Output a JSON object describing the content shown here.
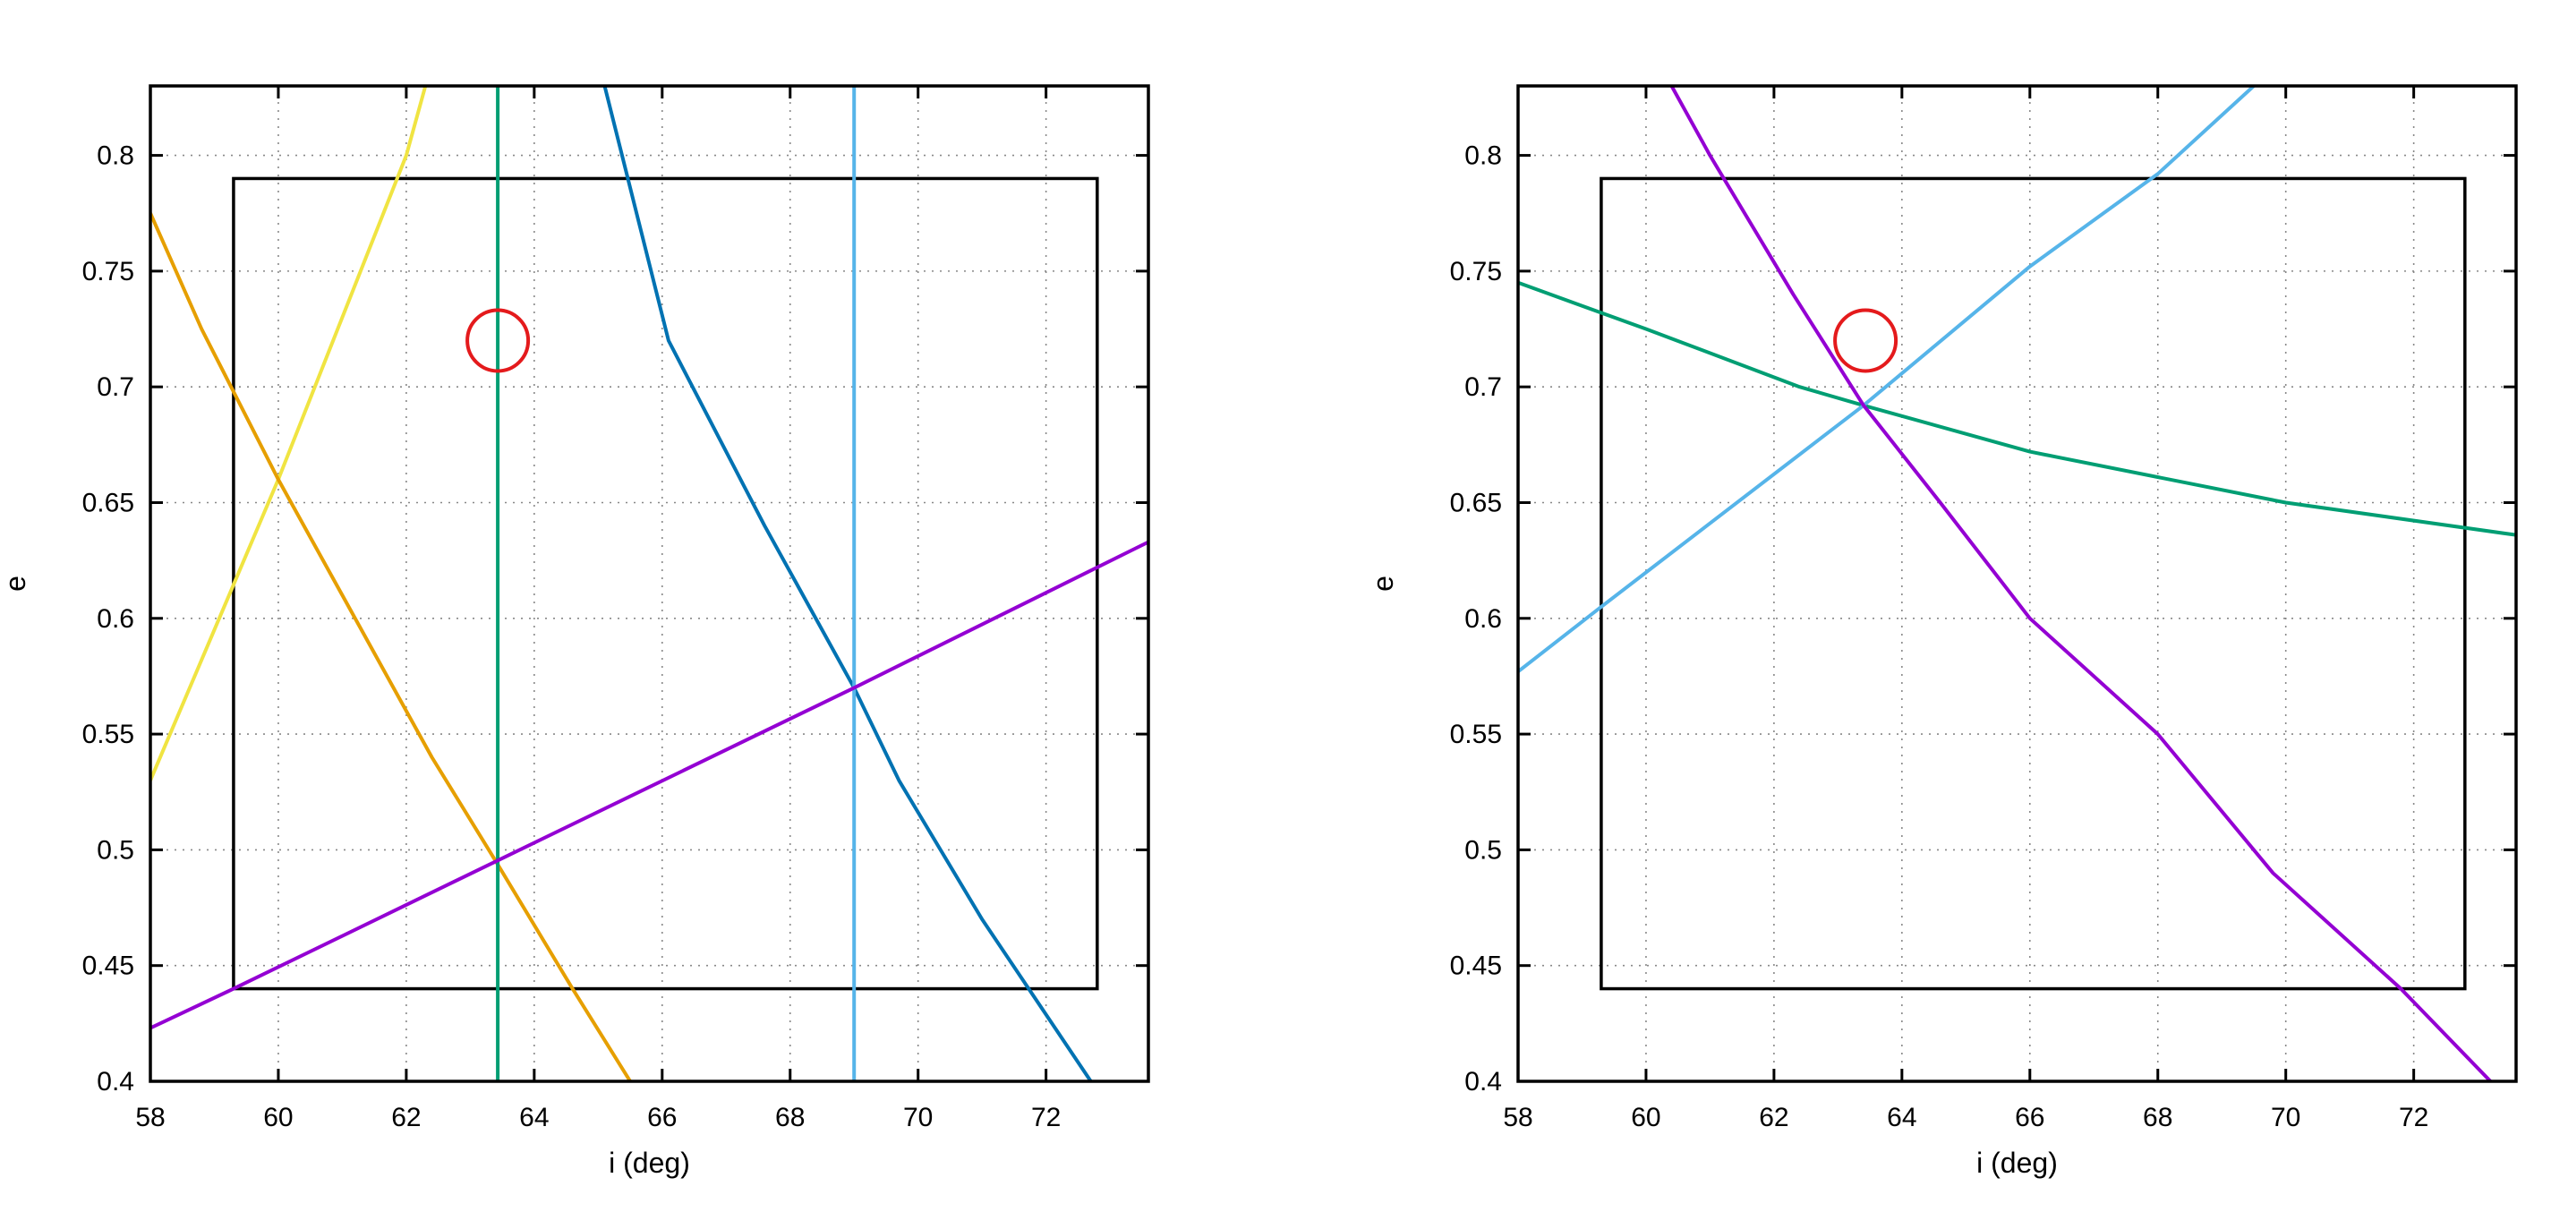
{
  "chart_data": [
    {
      "type": "line",
      "title": "",
      "xlabel": "i (deg)",
      "ylabel": "e",
      "xlim": [
        58,
        73.6
      ],
      "ylim": [
        0.4,
        0.83
      ],
      "x_ticks": [
        58,
        60,
        62,
        64,
        66,
        68,
        70,
        72
      ],
      "y_ticks": [
        0.4,
        0.45,
        0.5,
        0.55,
        0.6,
        0.65,
        0.7,
        0.75,
        0.8
      ],
      "grid": true,
      "box": {
        "x": [
          59.3,
          72.8
        ],
        "y": [
          0.44,
          0.79
        ]
      },
      "marker": {
        "x": 63.43,
        "y": 0.72
      },
      "series": [
        {
          "color": "#f0e442",
          "x": [
            58.0,
            60.0,
            61.0,
            62.0,
            62.3
          ],
          "y": [
            0.53,
            0.66,
            0.73,
            0.8,
            0.83
          ]
        },
        {
          "color": "#e69f00",
          "x": [
            58.0,
            58.8,
            60.0,
            61.0,
            62.4,
            63.4,
            64.6,
            65.5
          ],
          "y": [
            0.775,
            0.725,
            0.66,
            0.61,
            0.54,
            0.495,
            0.44,
            0.4
          ]
        },
        {
          "color": "#009e73",
          "x": [
            63.43,
            63.43
          ],
          "y": [
            0.4,
            0.83
          ]
        },
        {
          "color": "#0072b2",
          "x": [
            65.1,
            66.1,
            67.6,
            69.0,
            69.7,
            71.0,
            72.7
          ],
          "y": [
            0.83,
            0.72,
            0.64,
            0.57,
            0.53,
            0.47,
            0.4
          ]
        },
        {
          "color": "#56b4e9",
          "x": [
            69.0,
            69.0
          ],
          "y": [
            0.4,
            0.83
          ]
        },
        {
          "color": "#9400d3",
          "x": [
            58.0,
            59.3,
            63.4,
            69.0,
            73.6
          ],
          "y": [
            0.423,
            0.44,
            0.495,
            0.57,
            0.633
          ]
        }
      ]
    },
    {
      "type": "line",
      "title": "",
      "xlabel": "i (deg)",
      "ylabel": "e",
      "xlim": [
        58,
        73.6
      ],
      "ylim": [
        0.4,
        0.83
      ],
      "x_ticks": [
        58,
        60,
        62,
        64,
        66,
        68,
        70,
        72
      ],
      "y_ticks": [
        0.4,
        0.45,
        0.5,
        0.55,
        0.6,
        0.65,
        0.7,
        0.75,
        0.8
      ],
      "grid": true,
      "box": {
        "x": [
          59.3,
          72.8
        ],
        "y": [
          0.44,
          0.79
        ]
      },
      "marker": {
        "x": 63.43,
        "y": 0.72
      },
      "series": [
        {
          "color": "#009e73",
          "x": [
            58.0,
            60.0,
            62.4,
            63.4,
            66.0,
            70.0,
            73.6
          ],
          "y": [
            0.745,
            0.725,
            0.7,
            0.692,
            0.672,
            0.65,
            0.636
          ]
        },
        {
          "color": "#56b4e9",
          "x": [
            58.0,
            59.3,
            63.4,
            66.0,
            68.0,
            69.5
          ],
          "y": [
            0.577,
            0.605,
            0.692,
            0.752,
            0.792,
            0.83
          ]
        },
        {
          "color": "#9400d3",
          "x": [
            60.4,
            61.0,
            62.3,
            63.4,
            64.6,
            66.0,
            68.0,
            69.8,
            71.8,
            73.2
          ],
          "y": [
            0.83,
            0.8,
            0.74,
            0.692,
            0.65,
            0.6,
            0.55,
            0.49,
            0.44,
            0.4
          ]
        }
      ]
    }
  ]
}
